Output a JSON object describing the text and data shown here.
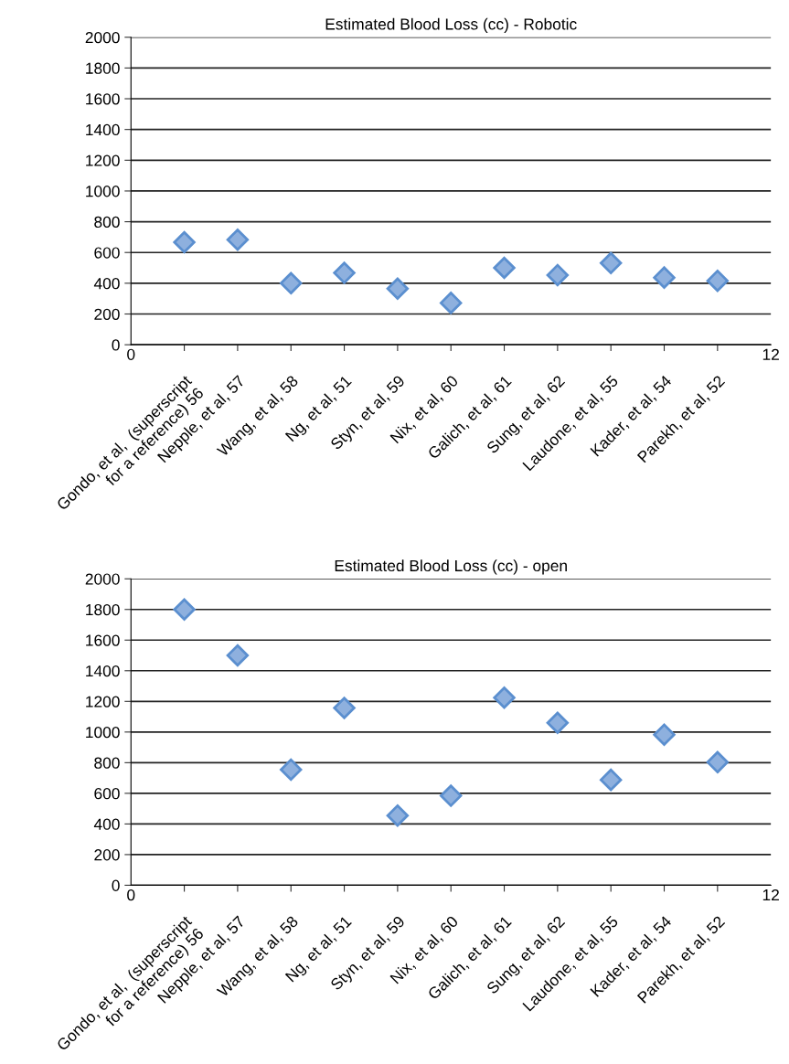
{
  "chart_data": [
    {
      "type": "scatter",
      "title": "Estimated Blood Loss (cc) - Robotic",
      "marker": "diamond",
      "grid": "y",
      "categories": [
        "Gondo, et al,  (superscript\nfor a reference) 56",
        "Nepple, et al, 57",
        "Wang, et al, 58",
        "Ng, et al, 51",
        "Styn, et al, 59",
        "Nix, et al, 60",
        "Galich, et al, 61",
        "Sung, et al, 62",
        "Laudone, et al, 55",
        "Kader, et al, 54",
        "Parekh, et al, 52"
      ],
      "annotations": [
        "0",
        "12"
      ],
      "ylim": [
        0,
        2000
      ],
      "yticks": [
        0,
        200,
        400,
        600,
        800,
        1000,
        1200,
        1400,
        1600,
        1800,
        2000
      ],
      "series": [
        {
          "color": "#8eb0de",
          "values": [
            667,
            683,
            400,
            467,
            365,
            272,
            500,
            453,
            531,
            437,
            416
          ]
        }
      ]
    },
    {
      "type": "scatter",
      "title": "Estimated Blood Loss (cc) - open",
      "marker": "diamond",
      "grid": "y",
      "categories": [
        "Gondo, et al,  (superscript\nfor a reference) 56",
        "Nepple, et al, 57",
        "Wang, et al, 58",
        "Ng, et al, 51",
        "Styn, et al, 59",
        "Nix, et al, 60",
        "Galich, et al, 61",
        "Sung, et al, 62",
        "Laudone, et al, 55",
        "Kader, et al, 54",
        "Parekh, et al, 52"
      ],
      "annotations": [
        "0",
        "12"
      ],
      "ylim": [
        0,
        2000
      ],
      "yticks": [
        0,
        200,
        400,
        600,
        800,
        1000,
        1200,
        1400,
        1600,
        1800,
        2000
      ],
      "series": [
        {
          "color": "#8eb0de",
          "values": [
            1800,
            1500,
            755,
            1157,
            455,
            584,
            1224,
            1060,
            688,
            983,
            803
          ]
        }
      ]
    }
  ]
}
